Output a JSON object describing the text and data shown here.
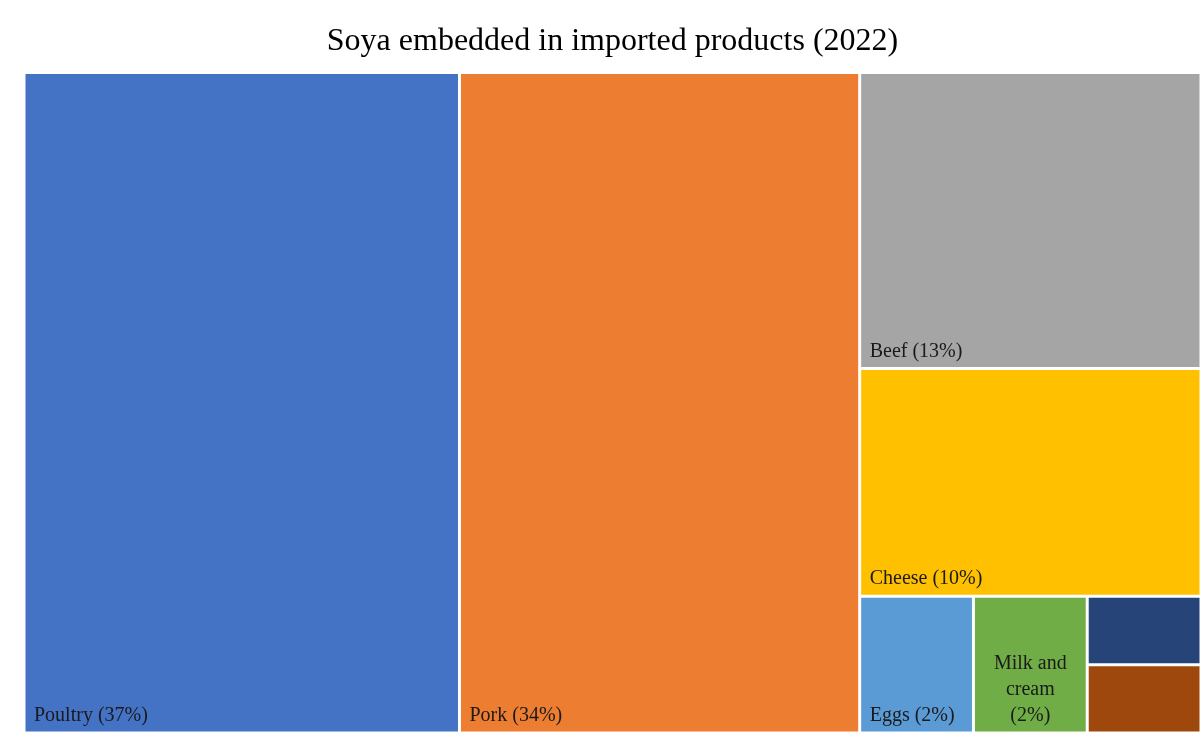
{
  "chart_data": {
    "type": "other",
    "title": "Soya embedded in imported products (2022)",
    "categories": [
      "Poultry",
      "Pork",
      "Beef",
      "Cheese",
      "Eggs",
      "Milk and cream",
      null,
      null
    ],
    "values": [
      37,
      34,
      13,
      10,
      2,
      2,
      null,
      null
    ],
    "value_labels": [
      "(37%)",
      "(34%)",
      "(13%)",
      "(10%)",
      "(2%)",
      "(2%)",
      null,
      null
    ],
    "colors": [
      "#4472c4",
      "#ed7d31",
      "#a5a5a5",
      "#ffc000",
      "#5b9bd5",
      "#70ad47",
      "#264478",
      "#9e480e"
    ]
  }
}
